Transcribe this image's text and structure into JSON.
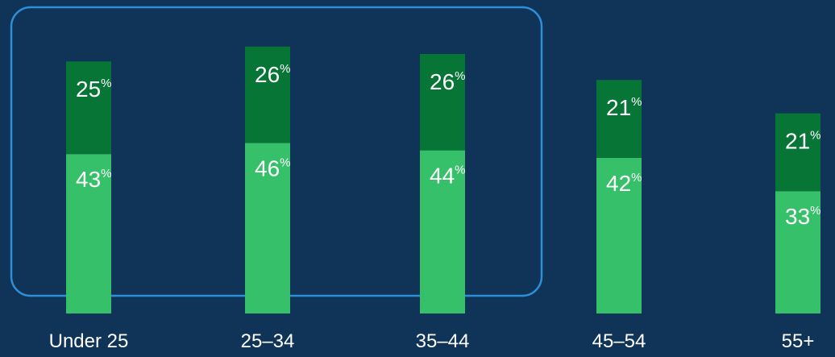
{
  "chart_data": {
    "type": "bar",
    "stacked": true,
    "categories": [
      "Under 25",
      "25–34",
      "35–44",
      "45–54",
      "55+"
    ],
    "series": [
      {
        "values": [
          43,
          46,
          44,
          42,
          33
        ]
      },
      {
        "values": [
          25,
          26,
          26,
          21,
          21
        ]
      }
    ],
    "value_suffix": "%",
    "highlight": {
      "categories": [
        "Under 25",
        "25–34",
        "35–44"
      ]
    },
    "grid": false,
    "legend": "none"
  },
  "colors": {
    "background": "#0f3457",
    "bottom_segment": "#37c06a",
    "top_segment": "#067535",
    "highlight_border": "#2f8ed8",
    "text": "#ffffff"
  }
}
